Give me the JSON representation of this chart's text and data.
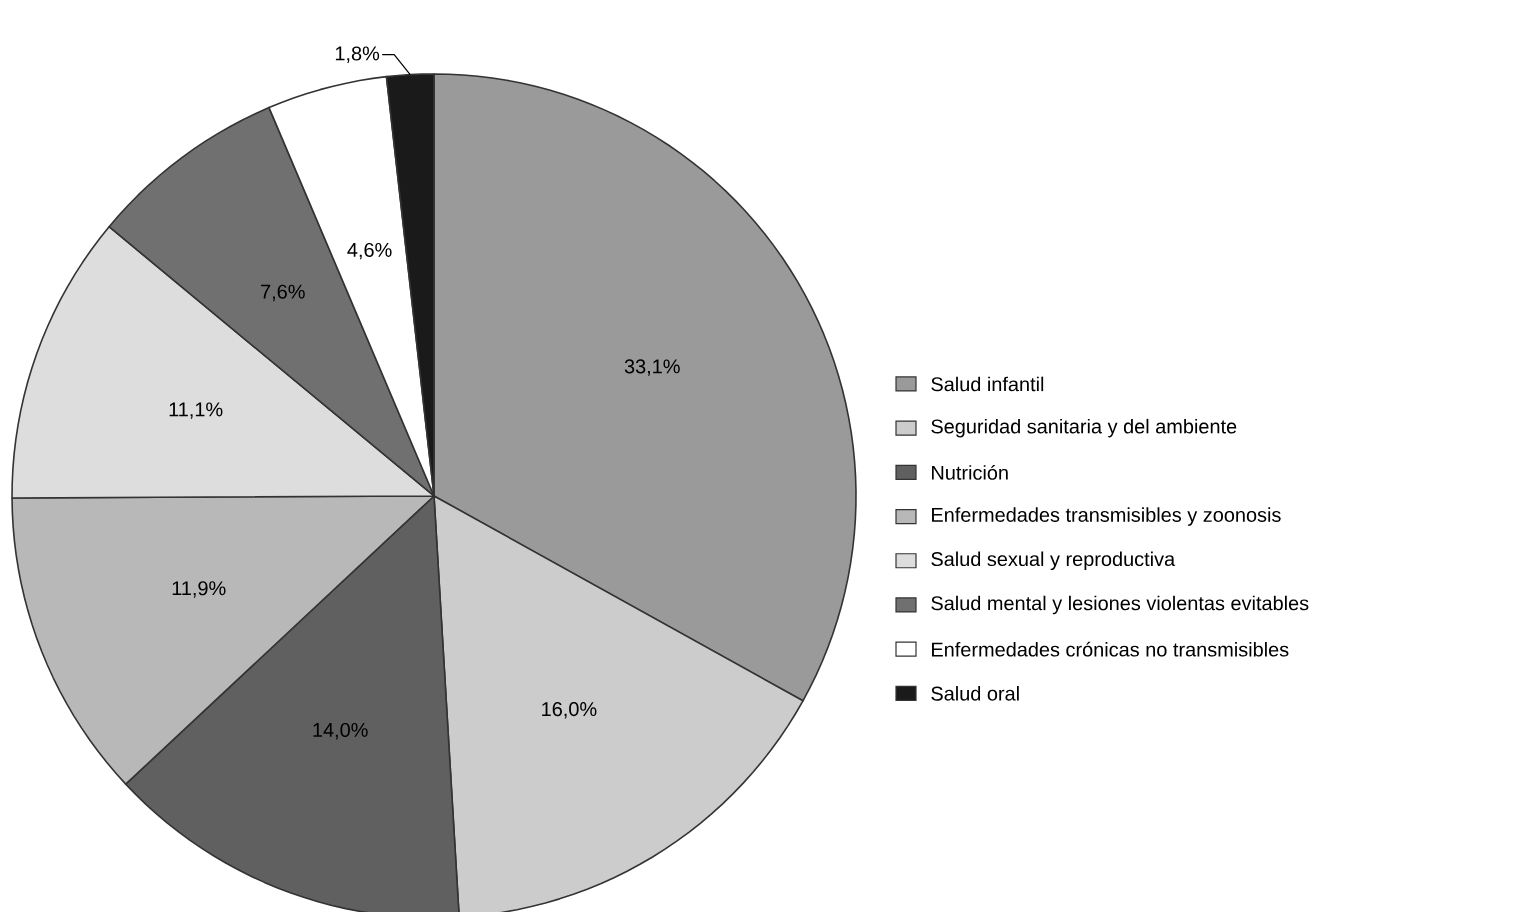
{
  "chart_data": {
    "type": "pie",
    "categories": [
      "Salud infantil",
      "Seguridad sanitaria y del ambiente",
      "Nutrición",
      "Enfermedades transmisibles y zoonosis",
      "Salud sexual y reproductiva",
      "Salud mental y lesiones violentas evitables",
      "Enfermedades crónicas no transmisibles",
      "Salud oral"
    ],
    "values": [
      33.1,
      16.0,
      14.0,
      11.9,
      11.1,
      7.6,
      4.6,
      1.8
    ],
    "value_labels": [
      "33,1%",
      "16,0%",
      "14,0%",
      "11,9%",
      "11,1%",
      "7,6%",
      "4,6%",
      "1,8%"
    ],
    "colors": [
      "#9a9a9a",
      "#cccccc",
      "#606060",
      "#b8b8b8",
      "#dddddd",
      "#707070",
      "#ffffff",
      "#1a1a1a"
    ],
    "legend": "right"
  }
}
